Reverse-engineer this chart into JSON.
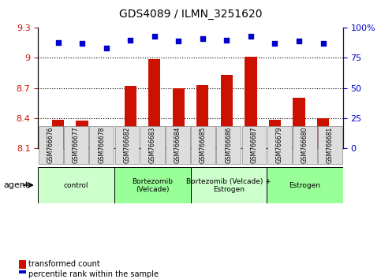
{
  "title": "GDS4089 / ILMN_3251620",
  "samples": [
    "GSM766676",
    "GSM766677",
    "GSM766678",
    "GSM766682",
    "GSM766683",
    "GSM766684",
    "GSM766685",
    "GSM766686",
    "GSM766687",
    "GSM766679",
    "GSM766680",
    "GSM766681"
  ],
  "bar_values": [
    8.38,
    8.37,
    8.14,
    8.72,
    8.99,
    8.7,
    8.73,
    8.83,
    9.01,
    8.38,
    8.6,
    8.4
  ],
  "dot_values": [
    88,
    87,
    83,
    90,
    93,
    89,
    91,
    90,
    93,
    87,
    89,
    87
  ],
  "bar_color": "#cc1100",
  "dot_color": "#0000cc",
  "ylim_left": [
    8.1,
    9.3
  ],
  "ylim_right": [
    0,
    100
  ],
  "yticks_left": [
    8.1,
    8.4,
    8.7,
    9.0,
    9.3
  ],
  "ytick_labels_left": [
    "8.1",
    "8.4",
    "8.7",
    "9",
    "9.3"
  ],
  "yticks_right": [
    0,
    25,
    50,
    75,
    100
  ],
  "ytick_labels_right": [
    "0",
    "25",
    "50",
    "75",
    "100%"
  ],
  "groups": [
    {
      "label": "control",
      "start": 0,
      "end": 3,
      "color": "#ccffcc"
    },
    {
      "label": "Bortezomib\n(Velcade)",
      "start": 3,
      "end": 6,
      "color": "#99ff99"
    },
    {
      "label": "Bortezomib (Velcade) +\nEstrogen",
      "start": 6,
      "end": 9,
      "color": "#ccffcc"
    },
    {
      "label": "Estrogen",
      "start": 9,
      "end": 12,
      "color": "#99ff99"
    }
  ],
  "agent_label": "agent",
  "legend_bar_label": "transformed count",
  "legend_dot_label": "percentile rank within the sample",
  "grid_color": "#000000",
  "bar_bottom": 8.1,
  "xlabel_area_color": "#cccccc"
}
